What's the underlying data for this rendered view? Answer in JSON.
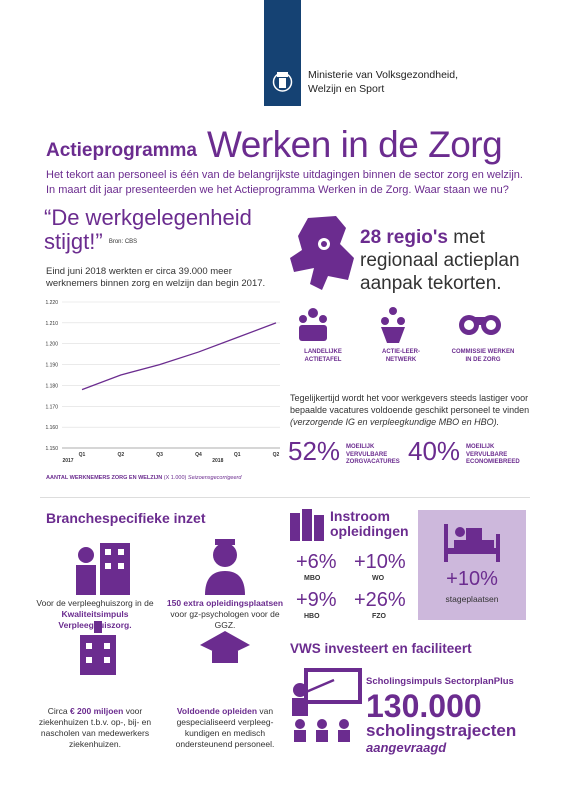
{
  "header": {
    "ministry": [
      "Ministerie van Volksgezondheid,",
      "Welzijn en Sport"
    ]
  },
  "title": {
    "lead": "Actieprogramma",
    "main": "Werken in de Zorg"
  },
  "intro": [
    "Het tekort aan personeel is één van de belangrijkste uitdagingen binnen de sector zorg en welzijn.",
    "In maart dit jaar presenteerden we het Actieprogramma Werken in de Zorg. Waar staan we nu?"
  ],
  "quote": {
    "lines": [
      "“De werkgelegenheid",
      "stijgt!”"
    ],
    "source": "Bron: CBS"
  },
  "employment_note": "Eind juni 2018 werkten er circa 39.000 meer werknemers binnen zorg en welzijn dan begin 2017.",
  "chart_data": {
    "type": "line",
    "categories": [
      "Q1",
      "Q2",
      "Q3",
      "Q4",
      "Q1",
      "Q2"
    ],
    "years": [
      "2017",
      "2018"
    ],
    "values": [
      1.178,
      1.185,
      1.19,
      1.196,
      1.203,
      1.21
    ],
    "color": "#6b2c8f",
    "ylim": [
      1.15,
      1.22
    ],
    "yticks": [
      {
        "value": 1.15,
        "label": "1.150"
      },
      {
        "value": 1.16,
        "label": "1.160"
      },
      {
        "value": 1.17,
        "label": "1.170"
      },
      {
        "value": 1.18,
        "label": "1.180"
      },
      {
        "value": 1.19,
        "label": "1.190"
      },
      {
        "value": 1.2,
        "label": "1.200"
      },
      {
        "value": 1.21,
        "label": "1.210"
      },
      {
        "value": 1.22,
        "label": "1.220"
      }
    ],
    "grid": true,
    "caption": "AANTAL WERKNEMERS ZORG EN WELZIJN",
    "caption_unit": "(X 1.000)",
    "caption_note": "Seizoensgecorrigeerd"
  },
  "regions": {
    "highlight": "28 regio's",
    "rest": "met regionaal actieplan aanpak tekorten."
  },
  "initiatives": [
    "LANDELIJKE ACTIETAFEL",
    "ACTIE-LEER-NETWERK",
    "COMMISSIE WERKEN IN DE ZORG"
  ],
  "vacancies": {
    "text": "Tegelijkertijd wordt het voor werkgevers steeds lastiger voor bepaalde vacatures voldoende geschikt personeel te vinden",
    "note": "(verzorgende IG en verpleegkundige MBO en HBO).",
    "stats": [
      {
        "value": "52%",
        "label": "MOEILIJK VERVULBARE ZORGVACATURES"
      },
      {
        "value": "40%",
        "label": "MOEILIJK VERVULBARE ECONOMIEBREED"
      }
    ]
  },
  "branche": {
    "title": "Branchespecifieke inzet",
    "items": [
      [
        {
          "text": "Voor de verpleeghuiszorg in de ",
          "bold": false
        },
        {
          "text": "Kwaliteitsimpuls Verpleeghuiszorg.",
          "bold": true
        }
      ],
      [
        {
          "text": "150 extra opleidingsplaatsen",
          "bold": true
        },
        {
          "text": " voor gz-psychologen voor de GGZ.",
          "bold": false
        }
      ],
      [
        {
          "text": "Circa ",
          "bold": false
        },
        {
          "text": "€ 200 miljoen",
          "bold": true
        },
        {
          "text": " voor ziekenhuizen t.b.v. op-, bij- en nascholen van medewerkers ziekenhuizen.",
          "bold": false
        }
      ],
      [
        {
          "text": "Voldoende opleiden",
          "bold": true
        },
        {
          "text": " van gespecialiseerd verpleeg-kundigen en medisch ondersteunend personeel.",
          "bold": false
        }
      ]
    ]
  },
  "instroom": {
    "title": [
      "Instroom",
      "opleidingen"
    ],
    "stats": [
      {
        "value": "+6%",
        "label": "MBO"
      },
      {
        "value": "+10%",
        "label": "WO"
      },
      {
        "value": "+9%",
        "label": "HBO"
      },
      {
        "value": "+26%",
        "label": "FZO"
      }
    ],
    "internships": {
      "value": "+10%",
      "label": "stageplaatsen"
    }
  },
  "vws": {
    "title": "VWS investeert en faciliteert",
    "program": "Scholingsimpuls SectorplanPlus",
    "number": "130.000",
    "unit": "scholingstrajecten",
    "status": "aangevraagd"
  }
}
